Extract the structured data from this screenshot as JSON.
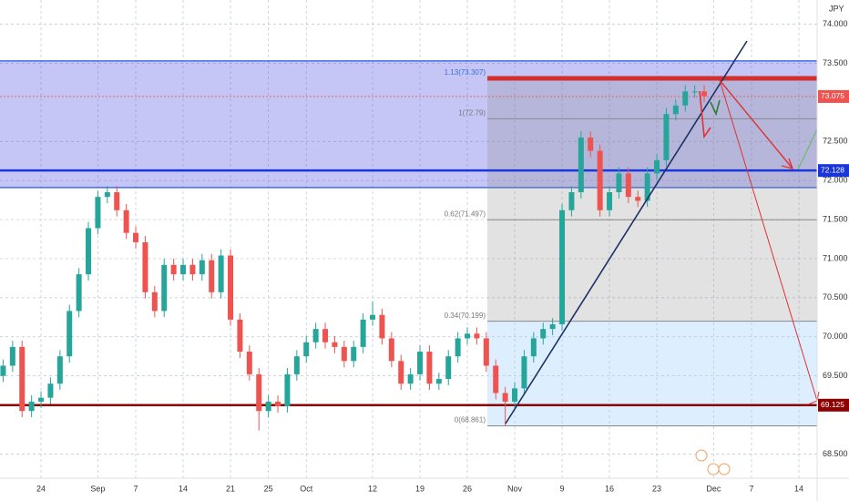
{
  "chart_data": {
    "type": "candlestick",
    "currency": "JPY",
    "x": [
      -4,
      -3,
      -2,
      -1,
      0,
      1,
      2,
      3,
      4,
      5,
      6,
      7,
      8,
      9,
      10,
      11,
      12,
      13,
      14,
      15,
      16,
      17,
      18,
      19,
      20,
      21,
      22,
      23,
      24,
      25,
      26,
      27,
      28,
      29,
      30,
      31,
      32,
      33,
      34,
      35,
      36,
      37,
      38,
      39,
      40,
      41,
      42,
      43,
      44,
      45,
      46,
      47,
      48,
      49,
      50,
      51,
      52,
      53,
      54,
      55,
      56,
      57,
      58,
      59,
      60,
      61,
      62,
      63,
      64,
      65,
      66,
      67,
      68,
      69,
      70
    ],
    "open": [
      69.5,
      69.63,
      69.87,
      69.05,
      69.17,
      69.22,
      69.4,
      69.75,
      70.33,
      70.8,
      71.39,
      71.79,
      71.85,
      71.62,
      71.33,
      71.21,
      70.57,
      70.33,
      70.92,
      70.8,
      70.92,
      70.8,
      70.98,
      70.57,
      71.04,
      70.22,
      69.81,
      69.52,
      69.05,
      69.17,
      69.11,
      69.52,
      69.75,
      69.93,
      70.1,
      69.93,
      69.87,
      69.69,
      69.87,
      70.22,
      70.28,
      69.98,
      69.69,
      69.4,
      69.52,
      69.81,
      69.4,
      69.46,
      69.75,
      69.98,
      70.04,
      69.98,
      69.63,
      69.28,
      69.17,
      69.34,
      69.75,
      69.98,
      70.1,
      70.16,
      71.62,
      71.85,
      72.55,
      72.38,
      71.62,
      71.85,
      72.09,
      71.79,
      71.74,
      72.09,
      72.26,
      72.85,
      72.96,
      73.14,
      73.14
    ],
    "high": [
      69.71,
      69.95,
      69.95,
      69.25,
      69.3,
      69.48,
      69.83,
      70.41,
      70.88,
      71.47,
      71.87,
      71.93,
      71.93,
      71.7,
      71.41,
      71.29,
      70.65,
      71.0,
      71.0,
      71.0,
      71.0,
      71.06,
      71.06,
      71.12,
      71.12,
      70.3,
      69.89,
      69.6,
      69.25,
      69.25,
      69.6,
      69.83,
      70.01,
      70.18,
      70.18,
      70.01,
      69.95,
      69.95,
      70.3,
      70.45,
      70.36,
      70.06,
      69.77,
      69.6,
      69.89,
      69.89,
      69.54,
      69.83,
      70.06,
      70.12,
      70.12,
      70.06,
      69.71,
      69.36,
      69.42,
      69.83,
      70.06,
      70.18,
      70.24,
      71.7,
      71.93,
      72.63,
      72.63,
      72.46,
      71.93,
      72.17,
      72.17,
      71.87,
      72.17,
      72.34,
      72.93,
      73.04,
      73.22,
      73.22,
      73.22
    ],
    "low": [
      69.42,
      69.55,
      68.97,
      68.97,
      69.09,
      69.14,
      69.32,
      69.67,
      70.25,
      70.72,
      71.31,
      71.71,
      71.54,
      71.25,
      71.13,
      70.49,
      70.25,
      70.25,
      70.72,
      70.72,
      70.72,
      70.72,
      70.49,
      70.49,
      70.14,
      69.73,
      69.44,
      68.8,
      68.97,
      69.03,
      69.03,
      69.44,
      69.67,
      69.85,
      69.85,
      69.79,
      69.61,
      69.61,
      69.79,
      70.14,
      69.9,
      69.61,
      69.32,
      69.32,
      69.44,
      69.32,
      69.32,
      69.38,
      69.67,
      69.9,
      69.9,
      69.55,
      69.2,
      68.86,
      69.09,
      69.26,
      69.67,
      69.9,
      70.02,
      70.08,
      71.54,
      71.77,
      72.3,
      71.54,
      71.54,
      71.77,
      71.71,
      71.66,
      71.66,
      72.01,
      72.18,
      72.77,
      72.88,
      73.06,
      73.0
    ],
    "close": [
      69.63,
      69.87,
      69.05,
      69.17,
      69.22,
      69.4,
      69.75,
      70.33,
      70.8,
      71.39,
      71.79,
      71.85,
      71.62,
      71.33,
      71.21,
      70.57,
      70.33,
      70.92,
      70.8,
      70.92,
      70.8,
      70.98,
      70.57,
      71.04,
      70.22,
      69.81,
      69.52,
      69.05,
      69.17,
      69.11,
      69.52,
      69.75,
      69.93,
      70.1,
      69.93,
      69.87,
      69.69,
      69.87,
      70.22,
      70.28,
      69.98,
      69.69,
      69.4,
      69.52,
      69.81,
      69.4,
      69.46,
      69.75,
      69.98,
      70.04,
      69.98,
      69.63,
      69.28,
      69.17,
      69.34,
      69.75,
      69.98,
      70.1,
      70.16,
      71.62,
      71.85,
      72.55,
      72.38,
      71.62,
      71.85,
      72.09,
      71.79,
      71.74,
      72.09,
      72.26,
      72.85,
      72.96,
      73.14,
      73.14,
      73.08
    ],
    "up_color": "#26a69a",
    "down_color": "#ef5350",
    "xlim": [
      -4.33,
      81.92
    ],
    "xticks": [
      {
        "value": 0,
        "label": "24"
      },
      {
        "value": 6,
        "label": "Sep"
      },
      {
        "value": 10,
        "label": "7"
      },
      {
        "value": 15,
        "label": "14"
      },
      {
        "value": 20,
        "label": "21"
      },
      {
        "value": 24,
        "label": "25"
      },
      {
        "value": 28,
        "label": "Oct"
      },
      {
        "value": 35,
        "label": "12"
      },
      {
        "value": 40,
        "label": "19"
      },
      {
        "value": 45,
        "label": "26"
      },
      {
        "value": 50,
        "label": "Nov"
      },
      {
        "value": 55,
        "label": "9"
      },
      {
        "value": 60,
        "label": "16"
      },
      {
        "value": 65,
        "label": "23"
      },
      {
        "value": 71,
        "label": "Dec"
      },
      {
        "value": 75,
        "label": "7"
      },
      {
        "value": 80,
        "label": "14"
      }
    ],
    "ylim": [
      68.19,
      74.31
    ],
    "yticks": [
      {
        "value": 74,
        "label": "74.000"
      },
      {
        "value": 73.5,
        "label": "73.500"
      },
      {
        "value": 72.5,
        "label": "72.500"
      },
      {
        "value": 72,
        "label": "72.000"
      },
      {
        "value": 71.5,
        "label": "71.500"
      },
      {
        "value": 71,
        "label": "71.000"
      },
      {
        "value": 70.5,
        "label": "70.500"
      },
      {
        "value": 70,
        "label": "70.000"
      },
      {
        "value": 69.5,
        "label": "69.500"
      },
      {
        "value": 68.5,
        "label": "68.500"
      }
    ],
    "grid": true,
    "zone": {
      "low": 71.91,
      "high": 73.53,
      "color": "#5a5ae6"
    },
    "fib_levels": [
      {
        "value": 73.307,
        "label": "1.13(73.307)",
        "color": "#d32f2f"
      },
      {
        "value": 72.79,
        "label": "1(72.79)",
        "color": "#888888"
      },
      {
        "value": 71.497,
        "label": "0.62(71.497)",
        "color": "#888888"
      },
      {
        "value": 70.199,
        "label": "0.34(70.199)",
        "color": "#888888"
      },
      {
        "value": 68.861,
        "label": "0(68.861)",
        "color": "#888888"
      }
    ],
    "price_lines": [
      {
        "value": 73.075,
        "label": "73.075",
        "color": "#ef5350"
      },
      {
        "value": 72.128,
        "label": "72.128",
        "color": "#1a35d8"
      },
      {
        "value": 69.125,
        "label": "69.125",
        "color": "#8b0000"
      }
    ]
  }
}
